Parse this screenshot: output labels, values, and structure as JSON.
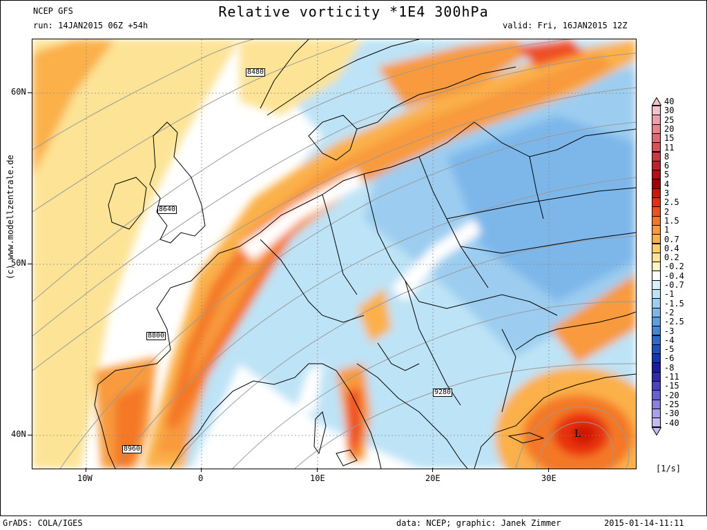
{
  "header": {
    "model": "NCEP GFS",
    "run": "run: 14JAN2015 06Z +54h",
    "title": "Relative vorticity *1E4 300hPa",
    "valid": "valid: Fri, 16JAN2015 12Z"
  },
  "map": {
    "lat_labels": [
      "60N",
      "50N",
      "40N"
    ],
    "lon_labels": [
      "10W",
      "0",
      "10E",
      "20E",
      "30E"
    ],
    "contour_labels": [
      "8480",
      "8640",
      "8800",
      "8960",
      "9280"
    ],
    "low_marker": "L",
    "credit": "(c) www.modellzentrale.de"
  },
  "colorbar": {
    "unit": "[1/s]",
    "levels": [
      "40",
      "30",
      "25",
      "20",
      "15",
      "11",
      "8",
      "6",
      "5",
      "4",
      "3",
      "2.5",
      "2",
      "1.5",
      "1",
      "0.7",
      "0.4",
      "0.2",
      "-0.2",
      "-0.4",
      "-0.7",
      "-1",
      "-1.5",
      "-2",
      "-2.5",
      "-3",
      "-4",
      "-5",
      "-6",
      "-8",
      "-11",
      "-15",
      "-20",
      "-25",
      "-30",
      "-40"
    ],
    "colors": [
      "#f4c2c8",
      "#eea0a8",
      "#e8848c",
      "#e06a70",
      "#d85058",
      "#cc3840",
      "#c02028",
      "#b01018",
      "#a00000",
      "#cc1800",
      "#e83010",
      "#f05020",
      "#f47828",
      "#f89a3c",
      "#fbb04a",
      "#fdcf6a",
      "#fde395",
      "#fff3c0",
      "#ffffff",
      "#d8f0fb",
      "#bde3f6",
      "#9ccdf0",
      "#7db7ea",
      "#5c9ee0",
      "#4485d8",
      "#3069cc",
      "#1f50bf",
      "#1436b0",
      "#1b1e9c",
      "#2e2aa8",
      "#4a44c0",
      "#6860d0",
      "#8880de",
      "#a8a0e8",
      "#c4bcf0"
    ]
  },
  "footer": {
    "left": "GrADS: COLA/IGES",
    "data": "data: NCEP; graphic: Janek Zimmer",
    "date": "2015-01-14-11:11"
  }
}
